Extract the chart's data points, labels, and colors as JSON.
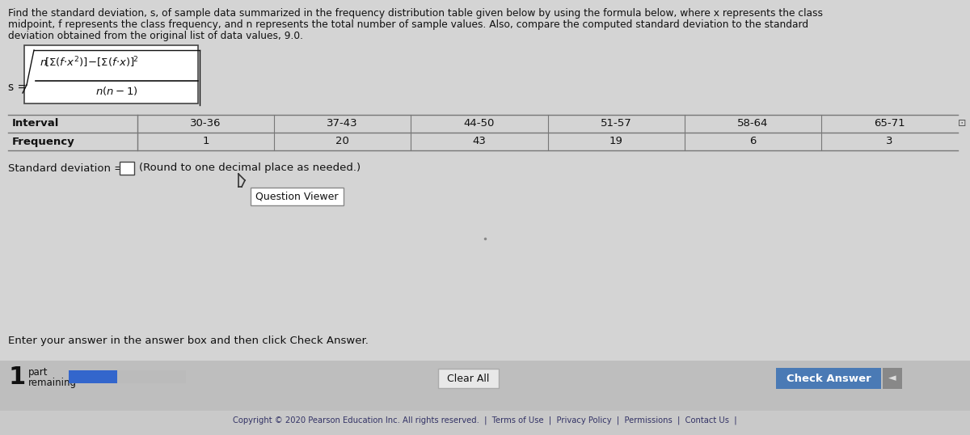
{
  "background_color": "#c9c9c9",
  "main_bg": "#d4d4d4",
  "text_color": "#111111",
  "paragraph_text_line1": "Find the standard deviation, s, of sample data summarized in the frequency distribution table given below by using the formula below, where x represents the class",
  "paragraph_text_line2": "midpoint, f represents the class frequency, and n represents the total number of sample values. Also, compare the computed standard deviation to the standard",
  "paragraph_text_line3": "deviation obtained from the original list of data values, 9.0.",
  "formula_box_bg": "#ffffff",
  "table_intervals": [
    "30-36",
    "37-43",
    "44-50",
    "51-57",
    "58-64",
    "65-71"
  ],
  "table_frequencies": [
    "1",
    "20",
    "43",
    "19",
    "6",
    "3"
  ],
  "std_dev_label": "Standard deviation =",
  "std_dev_note": "(Round to one decimal place as needed.)",
  "answer_box_bg": "#ffffff",
  "question_viewer_label": "Question Viewer",
  "question_viewer_bg": "#ffffff",
  "enter_answer_text": "Enter your answer in the answer box and then click Check Answer.",
  "bottom_bar_bg": "#bebebe",
  "part_number": "1",
  "clear_all_label": "Clear All",
  "clear_all_bg": "#e8e8e8",
  "check_answer_label": "Check Answer",
  "check_answer_bg": "#4a7ab5",
  "check_answer_text_color": "#ffffff",
  "progress_bar_color": "#3366cc",
  "progress_bar_bg": "#bbbbbb",
  "copyright_text": "Copyright © 2020 Pearson Education Inc. All rights reserved.  |  Terms of Use  |  Privacy Policy  |  Permissions  |  Contact Us  |",
  "footer_bg": "#c9c9c9",
  "table_line_color": "#777777",
  "arrow_dark": "#333333"
}
